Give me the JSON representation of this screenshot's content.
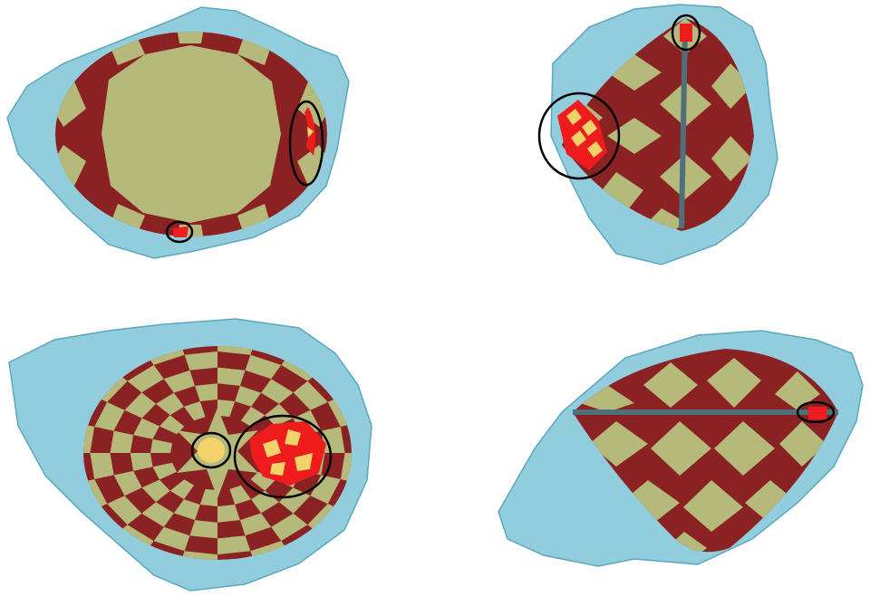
{
  "figure": {
    "panels": [
      {
        "id": "top-left",
        "view": "top-view-table",
        "highlights": 2
      },
      {
        "id": "top-right",
        "view": "side-view-pavilion",
        "highlights": 2
      },
      {
        "id": "bottom-left",
        "view": "bottom-view-culet",
        "highlights": 2
      },
      {
        "id": "bottom-right",
        "view": "side-view-girdle",
        "highlights": 1
      }
    ],
    "colors": {
      "rough_stone": "#7fc4d8",
      "rough_stone_edge": "#5aa7c0",
      "facet_light": "#b5b97a",
      "facet_dark": "#8a2223",
      "violation_red": "#ee1c1c",
      "violation_yellow": "#f4d26b",
      "girdle_line": "#4f6f7a",
      "highlight_ring": "#000000"
    }
  }
}
